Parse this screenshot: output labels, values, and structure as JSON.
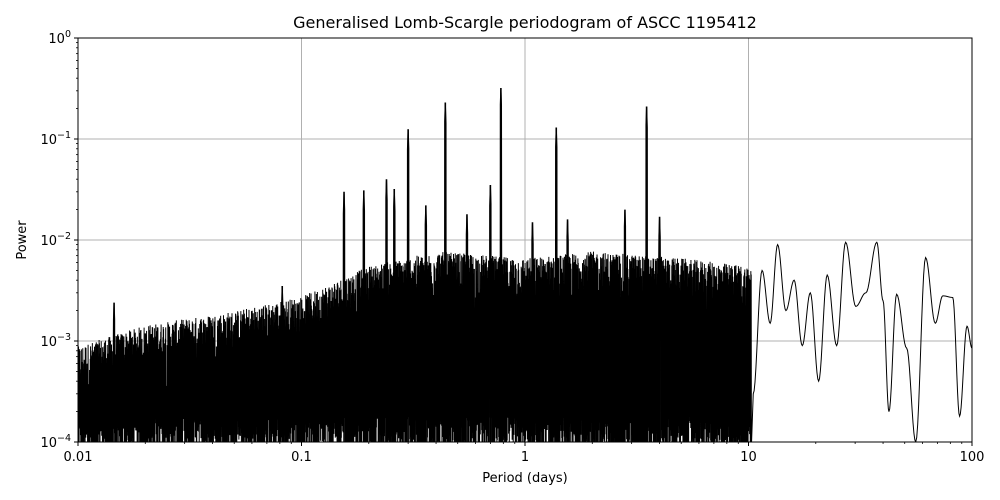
{
  "chart_data": {
    "type": "line",
    "title": "Generalised Lomb-Scargle periodogram of ASCC 1195412",
    "xlabel": "Period (days)",
    "ylabel": "Power",
    "x_scale": "log",
    "y_scale": "log",
    "xlim": [
      0.01,
      100
    ],
    "ylim": [
      0.0001,
      1
    ],
    "grid": true,
    "line_color": "#000000",
    "grid_color": "#b0b0b0",
    "x_ticks": [
      {
        "value": 0.01,
        "label": "0.01"
      },
      {
        "value": 0.1,
        "label": "0.1"
      },
      {
        "value": 1,
        "label": "1"
      },
      {
        "value": 10,
        "label": "10"
      },
      {
        "value": 100,
        "label": "100"
      }
    ],
    "y_ticks": [
      {
        "value": 0.0001,
        "base": "10",
        "exp": "−4"
      },
      {
        "value": 0.001,
        "base": "10",
        "exp": "−3"
      },
      {
        "value": 0.01,
        "base": "10",
        "exp": "−2"
      },
      {
        "value": 0.1,
        "base": "10",
        "exp": "−1"
      },
      {
        "value": 1,
        "base": "10",
        "exp": "0"
      }
    ],
    "peaks": [
      {
        "period": 0.3,
        "power": 0.125
      },
      {
        "period": 0.44,
        "power": 0.23
      },
      {
        "period": 0.78,
        "power": 0.32
      },
      {
        "period": 1.38,
        "power": 0.13
      },
      {
        "period": 3.5,
        "power": 0.21
      },
      {
        "period": 0.155,
        "power": 0.03
      },
      {
        "period": 0.19,
        "power": 0.031
      },
      {
        "period": 0.24,
        "power": 0.04
      },
      {
        "period": 0.26,
        "power": 0.032
      },
      {
        "period": 0.36,
        "power": 0.022
      },
      {
        "period": 0.55,
        "power": 0.018
      },
      {
        "period": 0.7,
        "power": 0.035
      },
      {
        "period": 1.08,
        "power": 0.015
      },
      {
        "period": 1.55,
        "power": 0.016
      },
      {
        "period": 2.8,
        "power": 0.02
      },
      {
        "period": 4.0,
        "power": 0.017
      },
      {
        "period": 0.0145,
        "power": 0.0024
      },
      {
        "period": 0.082,
        "power": 0.0035
      }
    ],
    "envelope": [
      {
        "period": 0.01,
        "power": 0.0008
      },
      {
        "period": 0.02,
        "power": 0.0013
      },
      {
        "period": 0.05,
        "power": 0.0018
      },
      {
        "period": 0.1,
        "power": 0.0025
      },
      {
        "period": 0.2,
        "power": 0.005
      },
      {
        "period": 0.4,
        "power": 0.007
      },
      {
        "period": 1.0,
        "power": 0.006
      },
      {
        "period": 2.0,
        "power": 0.007
      },
      {
        "period": 5.0,
        "power": 0.006
      },
      {
        "period": 10.0,
        "power": 0.005
      }
    ],
    "low_freq_curve": [
      {
        "period": 10.5,
        "power": 0.0003
      },
      {
        "period": 11.5,
        "power": 0.005
      },
      {
        "period": 12.5,
        "power": 0.0015
      },
      {
        "period": 13.5,
        "power": 0.009
      },
      {
        "period": 14.7,
        "power": 0.002
      },
      {
        "period": 16.0,
        "power": 0.004
      },
      {
        "period": 17.4,
        "power": 0.0009
      },
      {
        "period": 18.9,
        "power": 0.003
      },
      {
        "period": 20.6,
        "power": 0.0004
      },
      {
        "period": 22.5,
        "power": 0.0045
      },
      {
        "period": 24.8,
        "power": 0.0009
      },
      {
        "period": 27.2,
        "power": 0.0095
      },
      {
        "period": 30.2,
        "power": 0.0022
      },
      {
        "period": 33.5,
        "power": 0.003
      },
      {
        "period": 37.5,
        "power": 0.0095
      },
      {
        "period": 40.0,
        "power": 0.0025
      },
      {
        "period": 42.5,
        "power": 0.0002
      },
      {
        "period": 46.0,
        "power": 0.0029
      },
      {
        "period": 51.0,
        "power": 0.00085
      },
      {
        "period": 56.0,
        "power": 0.0001
      },
      {
        "period": 62.0,
        "power": 0.0067
      },
      {
        "period": 68.5,
        "power": 0.0015
      },
      {
        "period": 74.0,
        "power": 0.0028
      },
      {
        "period": 82.0,
        "power": 0.0027
      },
      {
        "period": 88.0,
        "power": 0.00018
      },
      {
        "period": 95.0,
        "power": 0.0014
      },
      {
        "period": 100.0,
        "power": 0.00085
      }
    ]
  }
}
